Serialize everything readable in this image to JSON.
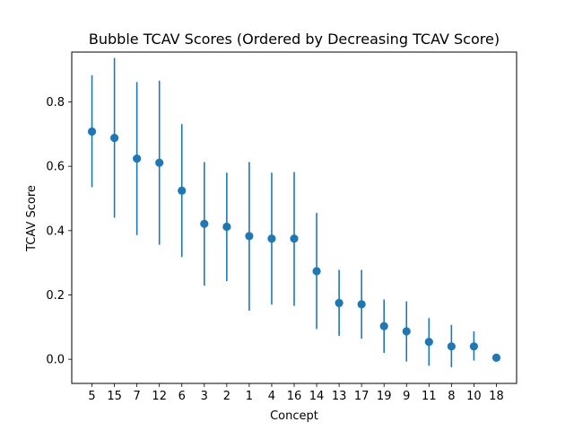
{
  "chart_data": {
    "type": "scatter",
    "title": "Bubble TCAV Scores (Ordered by Decreasing TCAV Score)",
    "xlabel": "Concept",
    "ylabel": "TCAV Score",
    "categories": [
      "5",
      "15",
      "7",
      "12",
      "6",
      "3",
      "2",
      "1",
      "4",
      "16",
      "14",
      "13",
      "17",
      "19",
      "9",
      "11",
      "8",
      "10",
      "18"
    ],
    "values": [
      0.708,
      0.688,
      0.624,
      0.611,
      0.524,
      0.421,
      0.412,
      0.383,
      0.375,
      0.375,
      0.274,
      0.175,
      0.171,
      0.103,
      0.087,
      0.054,
      0.04,
      0.04,
      0.005
    ],
    "error_low": [
      0.535,
      0.44,
      0.386,
      0.356,
      0.318,
      0.229,
      0.243,
      0.151,
      0.17,
      0.166,
      0.094,
      0.073,
      0.064,
      0.02,
      -0.007,
      -0.02,
      -0.025,
      -0.004,
      -0.002
    ],
    "error_high": [
      0.883,
      0.937,
      0.862,
      0.866,
      0.731,
      0.613,
      0.58,
      0.613,
      0.58,
      0.582,
      0.455,
      0.278,
      0.278,
      0.186,
      0.18,
      0.128,
      0.107,
      0.087,
      0.01
    ],
    "ylim": [
      -0.075,
      0.955
    ],
    "yticks": [
      "0.0",
      "0.2",
      "0.4",
      "0.6",
      "0.8"
    ],
    "grid": false,
    "colors": {
      "marker": "#1f77b4",
      "errorbar": "#1f77b4",
      "axes": "#000000"
    }
  }
}
